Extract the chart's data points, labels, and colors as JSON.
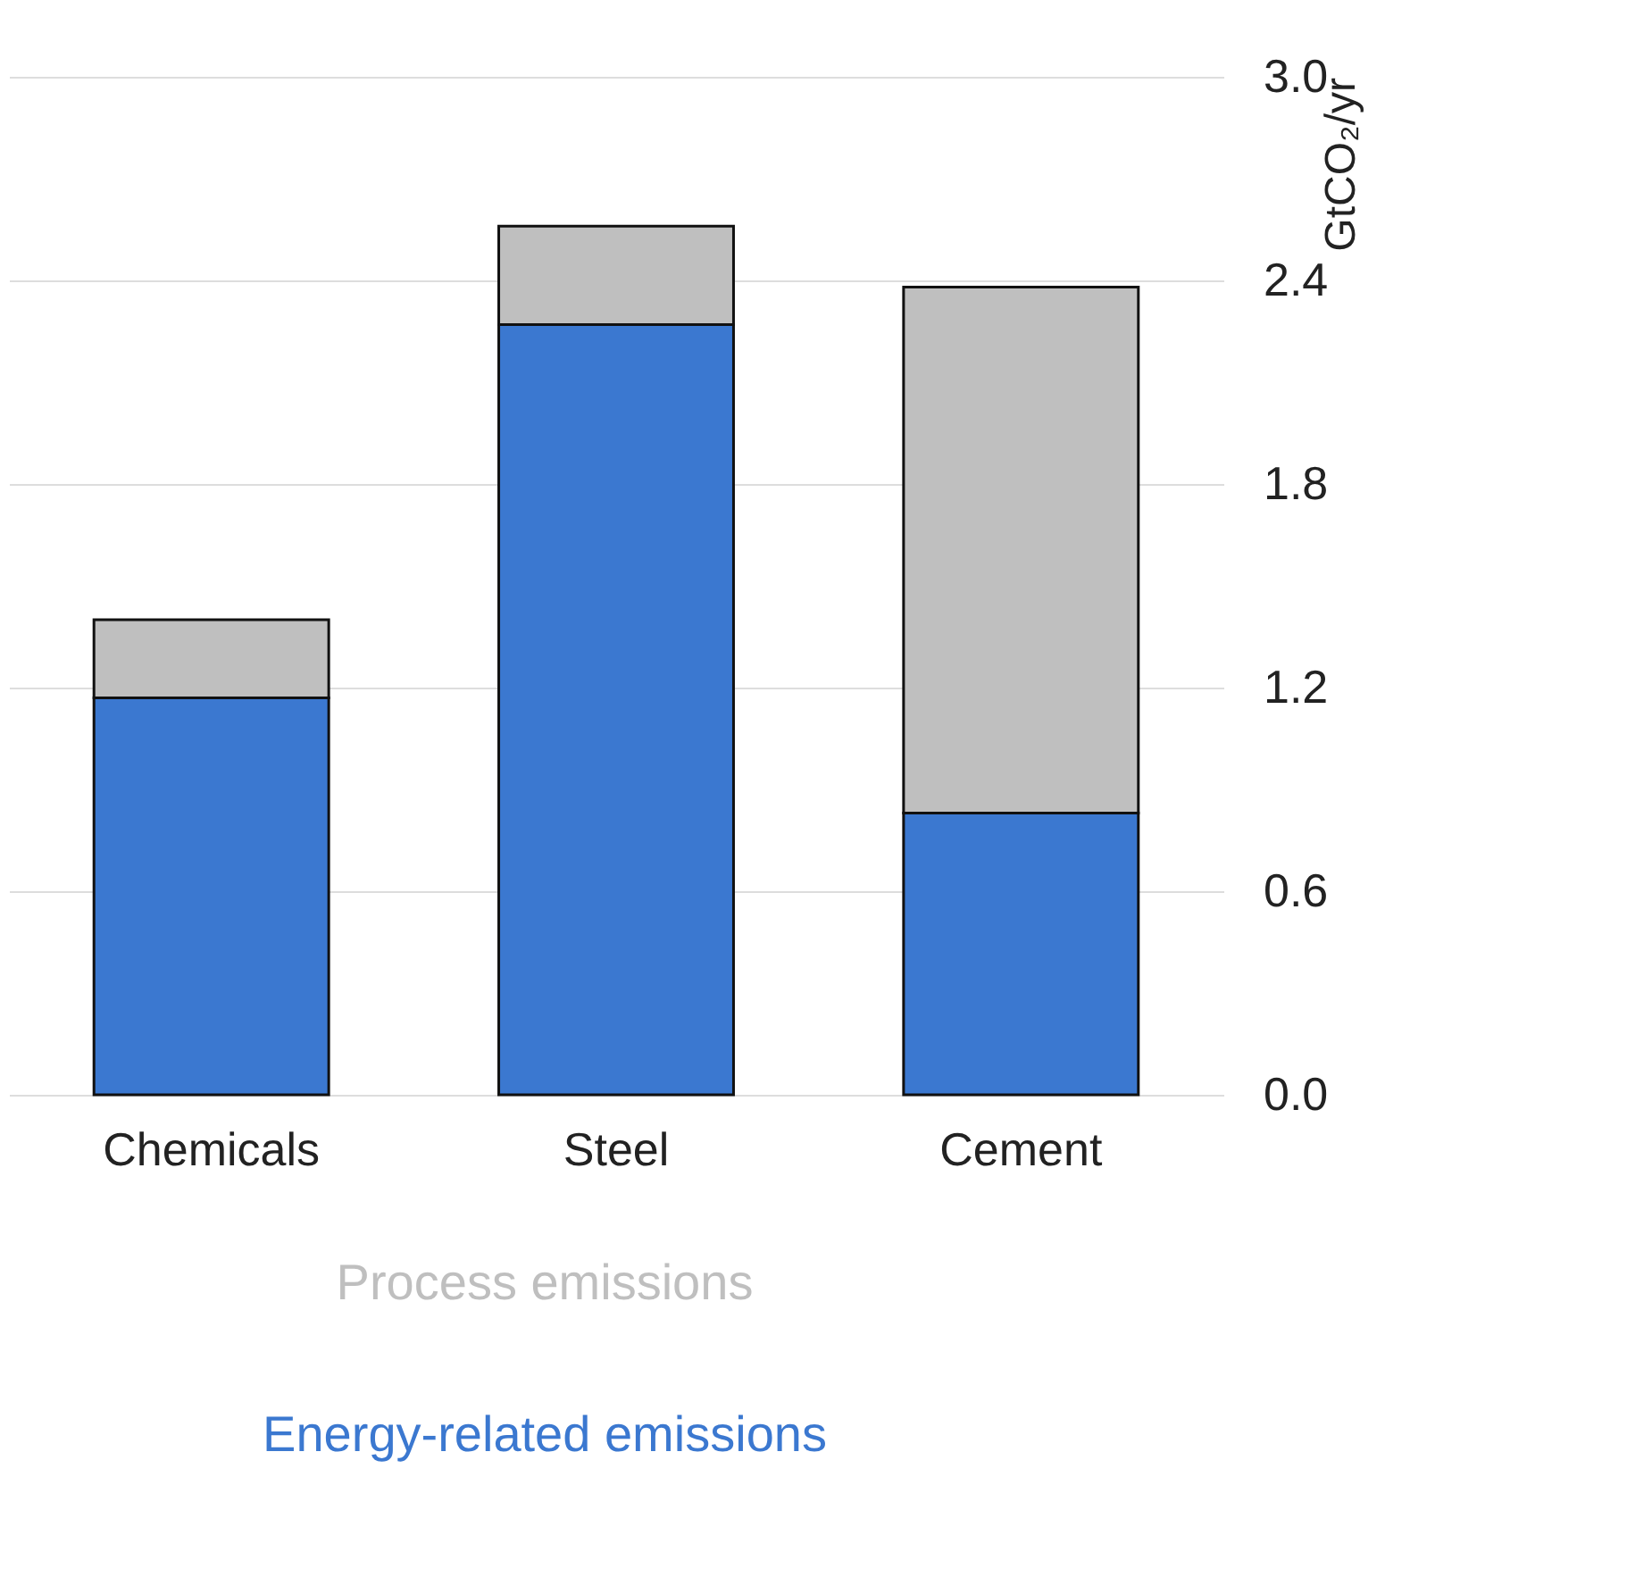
{
  "chart_data": {
    "type": "bar",
    "stacked": true,
    "categories": [
      "Chemicals",
      "Steel",
      "Cement"
    ],
    "series": [
      {
        "name": "Energy-related emissions",
        "color": "#3b78d0",
        "values": [
          1.17,
          2.27,
          0.83
        ]
      },
      {
        "name": "Process emissions",
        "color": "#bfbfbf",
        "values": [
          0.23,
          0.29,
          1.55
        ]
      }
    ],
    "ylabel": "GtCO₂/yr",
    "ylim": [
      0,
      3.0
    ],
    "yticks": [
      {
        "value": 0,
        "label": "0.0"
      },
      0.6,
      1.2,
      1.8,
      2.4,
      {
        "value": 3,
        "label": "3.0"
      }
    ],
    "grid": "y",
    "legend": "bottom"
  }
}
